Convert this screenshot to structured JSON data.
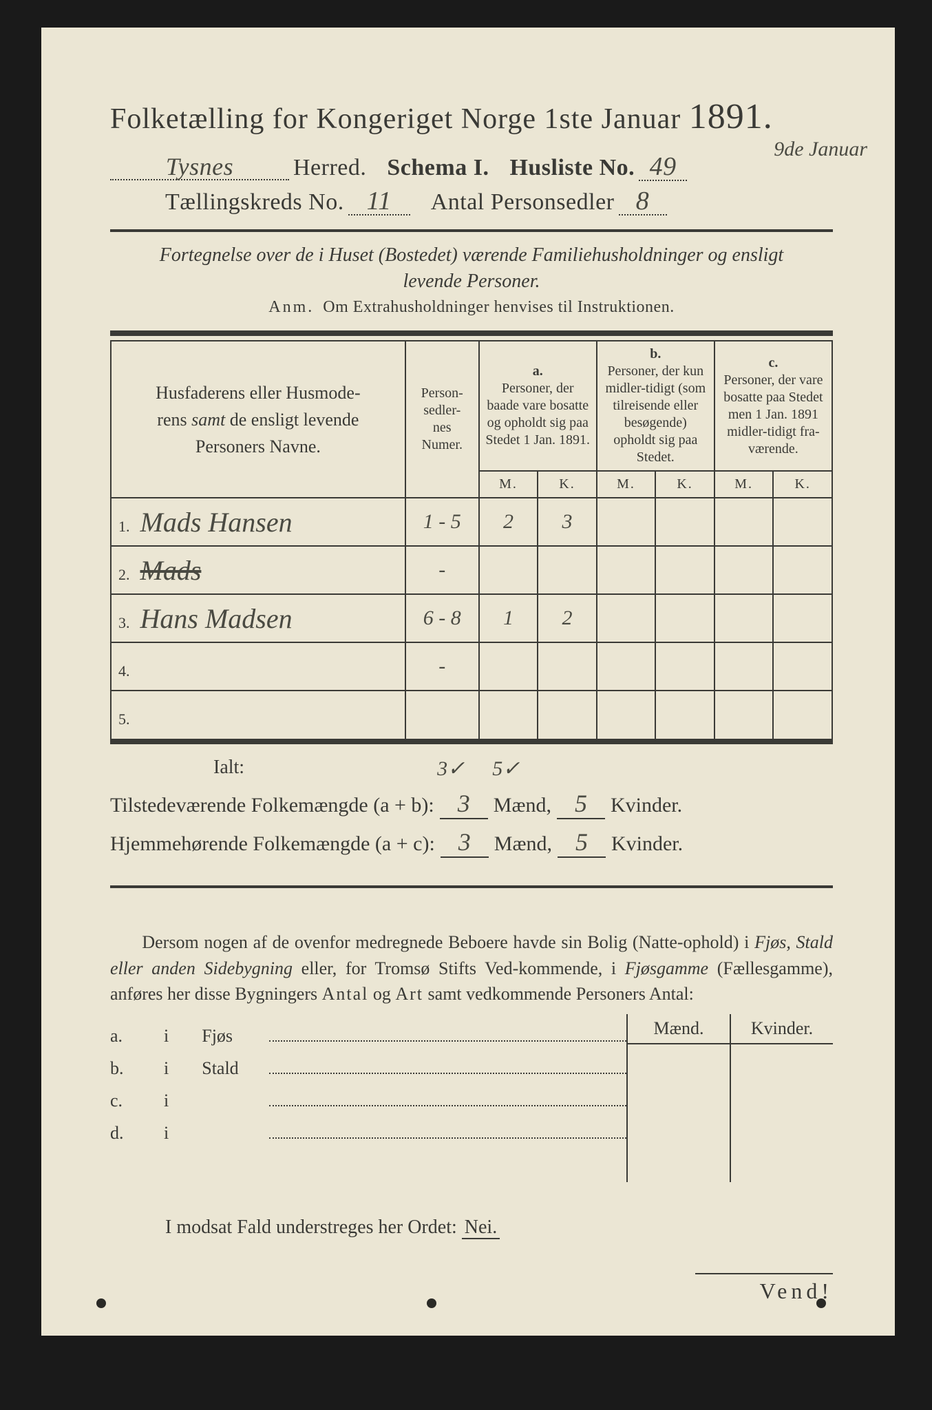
{
  "title": {
    "pre": "Folketælling for Kongeriget Norge 1ste Januar",
    "year": "1891."
  },
  "header": {
    "herred_value": "Tysnes",
    "herred_label": "Herred.",
    "schema_label": "Schema I.",
    "husliste_label": "Husliste No.",
    "husliste_no": "49",
    "kreds_label": "Tællingskreds No.",
    "kreds_no": "11",
    "personsedler_label": "Antal Personsedler",
    "personsedler_no": "8",
    "margin_note": "9de Januar"
  },
  "subhead1": "Fortegnelse over de i Huset (Bostedet) værende Familiehusholdninger og ensligt",
  "subhead2": "levende Personer.",
  "anm": "Anm. Om Extrahusholdninger henvises til Instruktionen.",
  "table": {
    "head_name": "Husfaderens eller Husmoderens samt de ensligt levende Personers Navne.",
    "head_num": "Person-\nsedler-\nnes\nNumer.",
    "head_a_top": "a.",
    "head_a": "Personer, der baade vare bosatte og opholdt sig paa Stedet 1 Jan. 1891.",
    "head_b_top": "b.",
    "head_b": "Personer, der kun midler-tidigt (som tilreisende eller besøgende) opholdt sig paa Stedet.",
    "head_c_top": "c.",
    "head_c": "Personer, der vare bosatte paa Stedet men 1 Jan. 1891 midler-tidigt fra-værende.",
    "m": "M.",
    "k": "K.",
    "rows": [
      {
        "n": "1.",
        "name": "Mads Hansen",
        "num": "1 - 5",
        "am": "2",
        "ak": "3",
        "bm": "",
        "bk": "",
        "cm": "",
        "ck": "",
        "struck": false
      },
      {
        "n": "2.",
        "name": "Mads",
        "num": "-",
        "am": "",
        "ak": "",
        "bm": "",
        "bk": "",
        "cm": "",
        "ck": "",
        "struck": true
      },
      {
        "n": "3.",
        "name": "Hans Madsen",
        "num": "6 - 8",
        "am": "1",
        "ak": "2",
        "bm": "",
        "bk": "",
        "cm": "",
        "ck": "",
        "struck": false
      },
      {
        "n": "4.",
        "name": "",
        "num": "-",
        "am": "",
        "ak": "",
        "bm": "",
        "bk": "",
        "cm": "",
        "ck": "",
        "struck": false
      },
      {
        "n": "5.",
        "name": "",
        "num": "",
        "am": "",
        "ak": "",
        "bm": "",
        "bk": "",
        "cm": "",
        "ck": "",
        "struck": false
      }
    ]
  },
  "ialt": {
    "label": "Ialt:",
    "note_m": "3✓",
    "note_k": "5✓"
  },
  "stats": {
    "present_label": "Tilstedeværende Folkemængde (a + b):",
    "present_m": "3",
    "present_k": "5",
    "home_label": "Hjemmehørende Folkemængde (a + c):",
    "home_m": "3",
    "home_k": "5",
    "maend": "Mænd,",
    "kvinder": "Kvinder."
  },
  "para_text": "Dersom nogen af de ovenfor medregnede Beboere havde sin Bolig (Natte-ophold) i Fjøs, Stald eller anden Sidebygning eller, for Tromsø Stifts Ved-kommende, i Fjøsgamme (Fællesgamme), anføres her disse Bygningers Antal og Art samt vedkommende Personers Antal:",
  "buildings": {
    "head_m": "Mænd.",
    "head_k": "Kvinder.",
    "rows": [
      {
        "k": "a.",
        "i": "i",
        "label": "Fjøs"
      },
      {
        "k": "b.",
        "i": "i",
        "label": "Stald"
      },
      {
        "k": "c.",
        "i": "i",
        "label": ""
      },
      {
        "k": "d.",
        "i": "i",
        "label": ""
      }
    ]
  },
  "nei_line": {
    "pre": "I modsat Fald understreges her Ordet:",
    "word": "Nei."
  },
  "vend": "Vend!",
  "colors": {
    "paper": "#ebe6d4",
    "ink": "#3a3a36",
    "frame": "#1a1a1a"
  }
}
